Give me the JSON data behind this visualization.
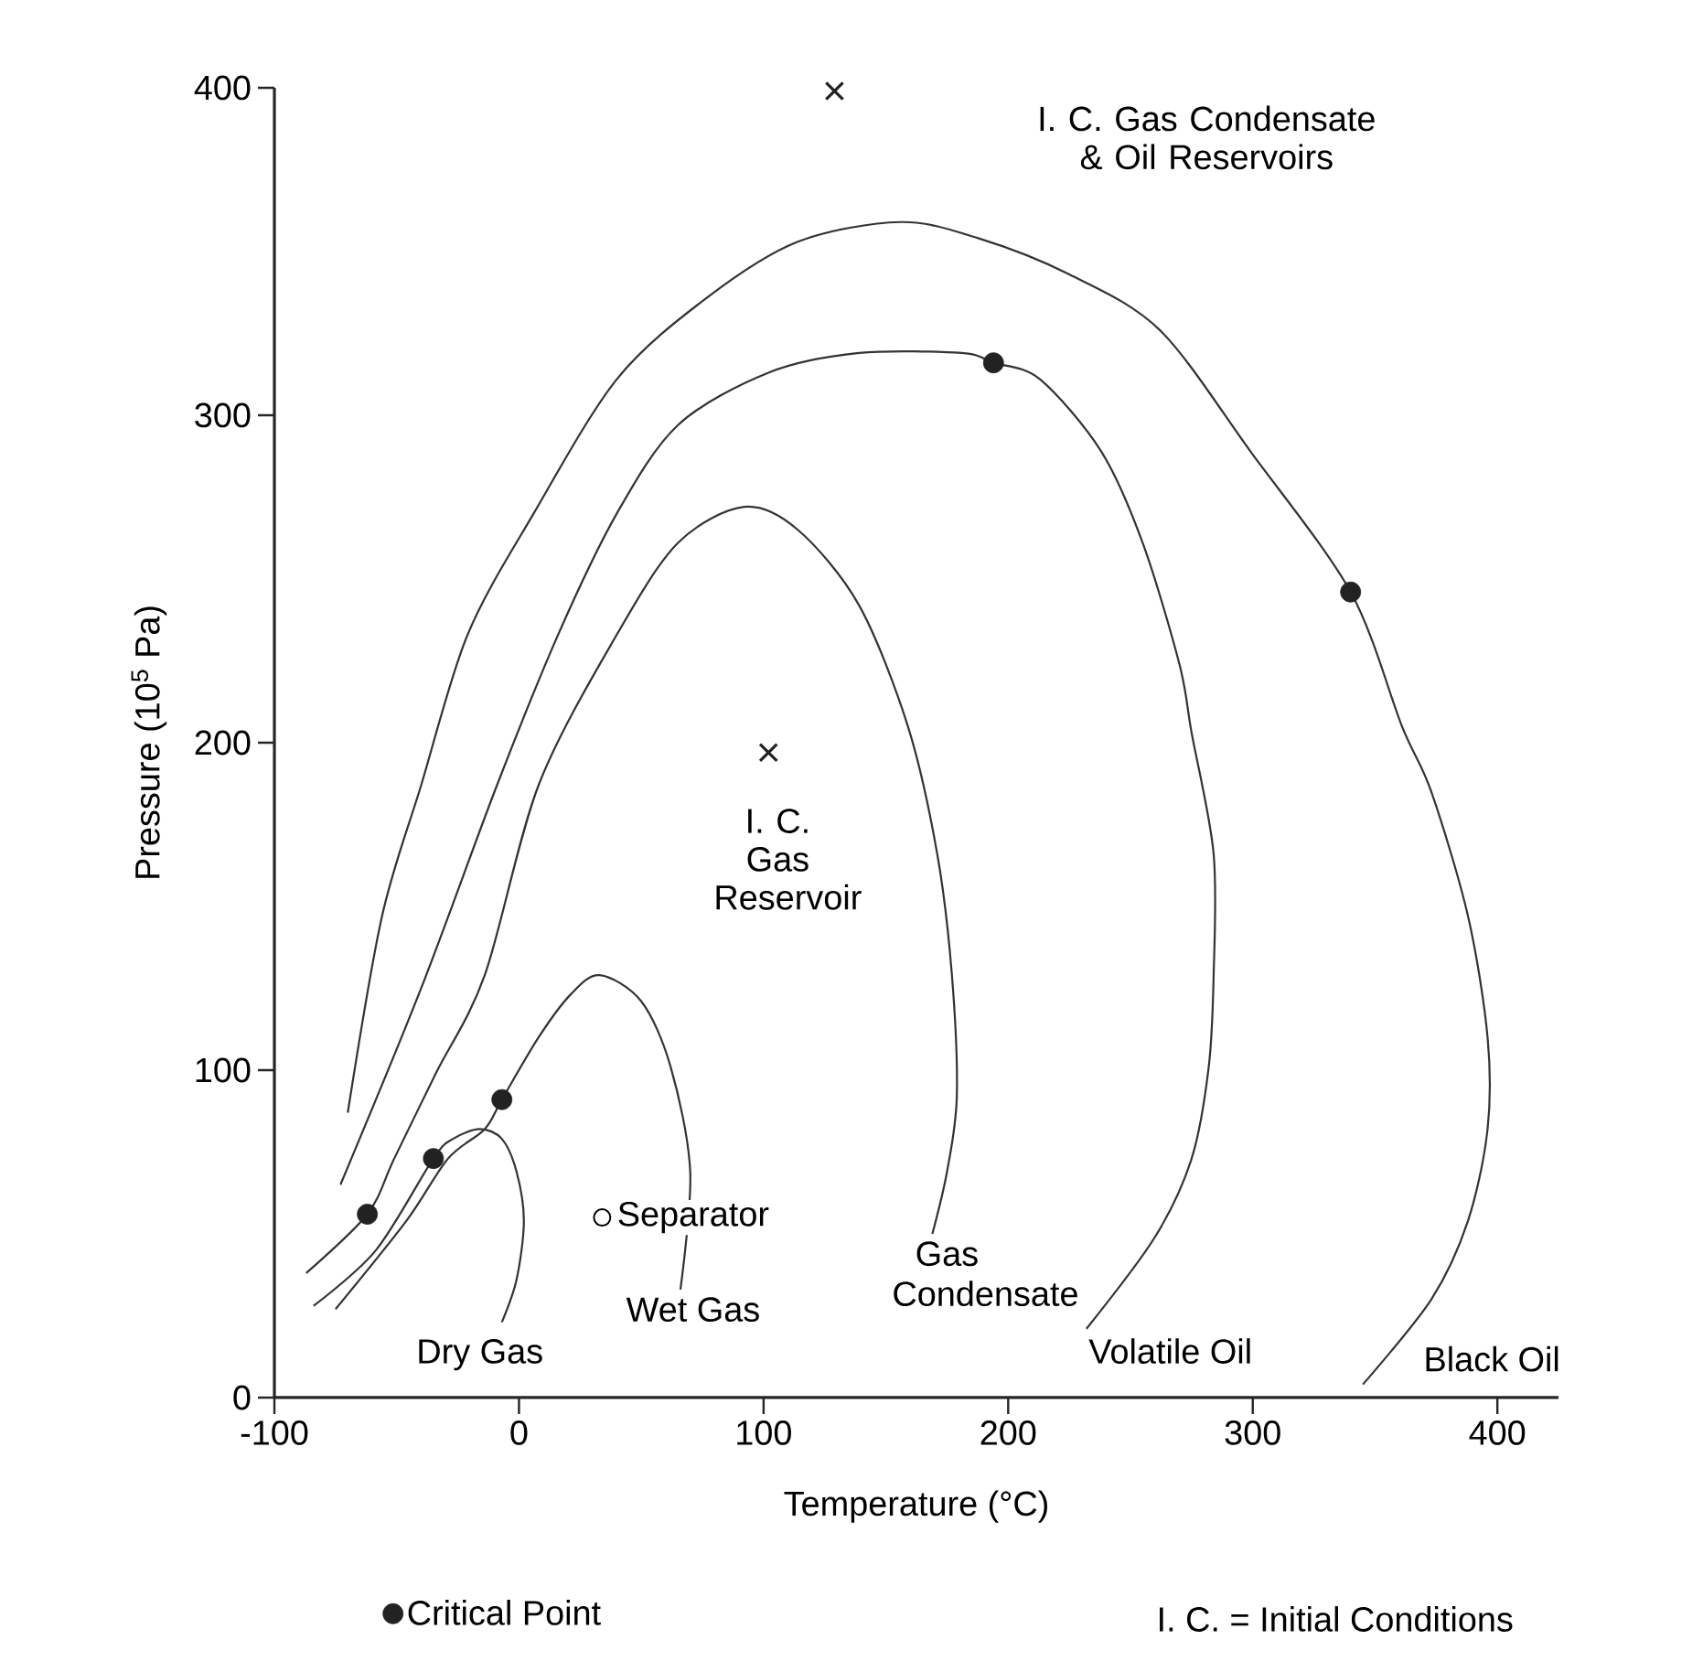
{
  "chart_data": {
    "type": "line",
    "xlabel": "Temperature (°C)",
    "ylabel": "Pressure (10$^{5}$ Pa)",
    "xlim": [
      -100,
      425
    ],
    "ylim": [
      0,
      400
    ],
    "xticks": [
      -100,
      0,
      100,
      200,
      300,
      400
    ],
    "yticks": [
      0,
      100,
      200,
      300,
      400
    ],
    "legend": "bottom",
    "line_style": "solid",
    "series": [
      {
        "name": "Dry Gas",
        "color": "#333333",
        "marker": "none",
        "x": [
          -84,
          -58.5,
          -35,
          -27,
          -16,
          -7,
          -1,
          2,
          -1,
          -7
        ],
        "values": [
          28,
          45,
          73,
          79,
          82,
          79,
          69,
          54,
          36,
          23
        ]
      },
      {
        "name": "Wet Gas",
        "color": "#333333",
        "marker": "none",
        "x": [
          -75,
          -46,
          -29,
          -14,
          -7,
          8,
          21,
          33,
          50,
          62,
          70,
          66
        ],
        "values": [
          27,
          54,
          73,
          82,
          91,
          110,
          123,
          129,
          121,
          101,
          69,
          33
        ]
      },
      {
        "name": "Gas Condensate",
        "color": "#333333",
        "marker": "none",
        "x": [
          -87,
          -62,
          -51,
          -34,
          -14,
          8,
          40,
          65,
          92,
          114,
          139,
          159,
          171,
          177,
          179,
          175,
          169
        ],
        "values": [
          38,
          56,
          73,
          99,
          129,
          187,
          233,
          261,
          272,
          265,
          242,
          205,
          166,
          129,
          92,
          69,
          50
        ]
      },
      {
        "name": "Volatile Oil",
        "color": "#333333",
        "marker": "none",
        "x": [
          -73,
          -40,
          -9,
          16,
          40,
          65,
          102,
          139,
          181,
          194,
          213,
          238,
          255,
          270,
          275,
          284,
          284,
          282,
          275,
          260,
          232
        ],
        "values": [
          65,
          125,
          187,
          233,
          270,
          297,
          313,
          319,
          319,
          316,
          311,
          289,
          261,
          224,
          203,
          166,
          129,
          101,
          73,
          49,
          21
        ]
      },
      {
        "name": "Black Oil",
        "color": "#333333",
        "marker": "none",
        "x": [
          -70,
          -56,
          -40,
          -21,
          6,
          40,
          77,
          114,
          156,
          188,
          225,
          262,
          299,
          340,
          361,
          373,
          388,
          396,
          396,
          388,
          373,
          345
        ],
        "values": [
          87,
          147,
          187,
          233,
          270,
          311,
          336,
          353,
          359,
          354,
          343,
          326,
          289,
          246,
          205,
          185,
          147,
          110,
          82,
          54,
          30,
          4
        ]
      },
      {
        "name": "Critical Point",
        "type": "scatter",
        "color": "#222222",
        "marker": "circle",
        "x": [
          -62,
          -35,
          -7,
          194,
          340
        ],
        "values": [
          56,
          73,
          91,
          316,
          246
        ]
      },
      {
        "type": "scatter",
        "color": "#222222",
        "marker": "cross",
        "x": [
          129,
          102
        ],
        "values": [
          399,
          197
        ]
      }
    ],
    "annotations": [
      {
        "text": "Separator",
        "x": 34,
        "y": 55
      },
      "I. C. Gas Condensate & Oil Reservoirs",
      "I. C. Gas Reservoir",
      "I. C. = Initial Conditions"
    ]
  }
}
